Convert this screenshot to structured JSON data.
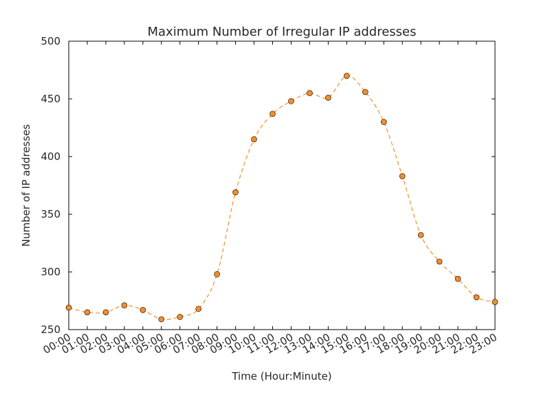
{
  "chart_data": {
    "type": "line",
    "title": "Maximum Number of Irregular IP addresses",
    "xlabel": "Time (Hour:Minute)",
    "ylabel": "Number of IP addresses",
    "ylim": [
      250,
      500
    ],
    "yticks": [
      "250",
      "300",
      "350",
      "400",
      "450",
      "500"
    ],
    "categories": [
      "00:00",
      "01:00",
      "02:00",
      "03:00",
      "04:00",
      "05:00",
      "06:00",
      "07:00",
      "08:00",
      "09:00",
      "10:00",
      "11:00",
      "12:00",
      "13:00",
      "14:00",
      "15:00",
      "16:00",
      "17:00",
      "18:00",
      "19:00",
      "20:00",
      "21:00",
      "22:00",
      "23:00"
    ],
    "series": [
      {
        "values": [
          269,
          265,
          265,
          271,
          267,
          259,
          261,
          268,
          298,
          369,
          415,
          437,
          448,
          455,
          451,
          470,
          456,
          430,
          383,
          332,
          309,
          294,
          278,
          274
        ],
        "line_style": "dashed",
        "line_color": "#f28e2b",
        "marker": "circle",
        "marker_color": "#f28e2b"
      }
    ],
    "grid": false,
    "legend": "none"
  }
}
